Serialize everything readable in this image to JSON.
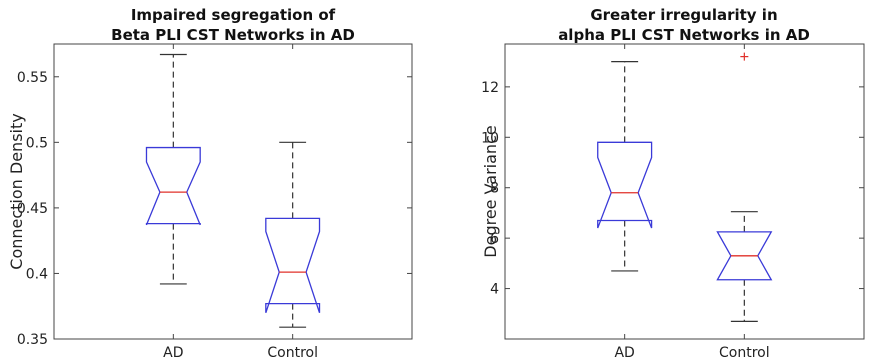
{
  "chart_data": [
    {
      "type": "box",
      "title": [
        "Impaired segregation of",
        "Beta PLI CST Networks in AD"
      ],
      "xlabel": "",
      "ylabel": "Connection Density",
      "ylim": [
        0.35,
        0.575
      ],
      "yticks": [
        0.35,
        0.4,
        0.45,
        0.5,
        0.55
      ],
      "ytick_labels": [
        "0.35",
        "0.4",
        "0.45",
        "0.5",
        "0.55"
      ],
      "categories": [
        "AD",
        "Control"
      ],
      "notched": true,
      "box_color": "#3a3ad8",
      "median_color": "#e0302a",
      "whisker_color": "#333333",
      "boxes": [
        {
          "label": "AD",
          "whisker_low": 0.392,
          "q1": 0.438,
          "median": 0.462,
          "q3": 0.496,
          "whisker_high": 0.567,
          "notch_low": 0.437,
          "notch_high": 0.485,
          "outliers": []
        },
        {
          "label": "Control",
          "whisker_low": 0.359,
          "q1": 0.377,
          "median": 0.401,
          "q3": 0.442,
          "whisker_high": 0.5,
          "notch_low": 0.37,
          "notch_high": 0.432,
          "outliers": []
        }
      ]
    },
    {
      "type": "box",
      "title": [
        "Greater irregularity in",
        "alpha PLI CST Networks in AD"
      ],
      "xlabel": "",
      "ylabel": "Degree Variance",
      "ylim": [
        2.0,
        13.7
      ],
      "yticks": [
        4,
        6,
        8,
        10,
        12
      ],
      "ytick_labels": [
        "4",
        "6",
        "8",
        "10",
        "12"
      ],
      "categories": [
        "AD",
        "Control"
      ],
      "notched": true,
      "box_color": "#3a3ad8",
      "median_color": "#e0302a",
      "whisker_color": "#333333",
      "boxes": [
        {
          "label": "AD",
          "whisker_low": 4.7,
          "q1": 6.7,
          "median": 7.8,
          "q3": 9.8,
          "whisker_high": 13.0,
          "notch_low": 6.4,
          "notch_high": 9.2,
          "outliers": []
        },
        {
          "label": "Control",
          "whisker_low": 2.7,
          "q1": 4.35,
          "median": 5.3,
          "q3": 6.25,
          "whisker_high": 7.05,
          "notch_low": 4.35,
          "notch_high": 6.25,
          "outliers": [
            13.2
          ]
        }
      ]
    }
  ]
}
